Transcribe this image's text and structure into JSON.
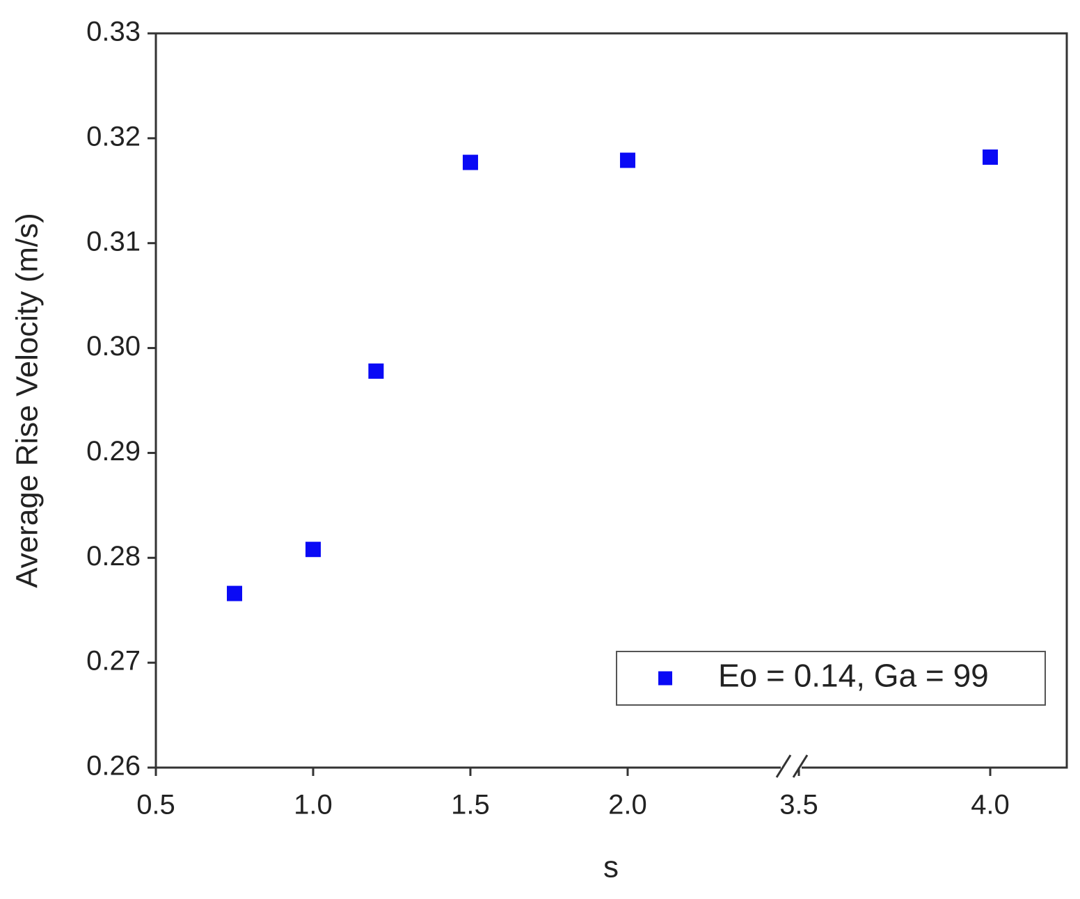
{
  "chart_data": {
    "type": "scatter",
    "x_label": "s",
    "y_label": "Average Rise Velocity (m/s)",
    "x": [
      0.75,
      1.0,
      1.2,
      1.5,
      2.0,
      4.0
    ],
    "series": [
      {
        "name": "Eo = 0.14, Ga = 99",
        "color": "#0a0af5",
        "values": [
          0.2766,
          0.2808,
          0.2978,
          0.3177,
          0.3179,
          0.3182
        ]
      }
    ],
    "xlim": [
      0.5,
      4.2
    ],
    "xbreak": [
      2.52,
      3.48
    ],
    "xticks": [
      0.5,
      {
        "value": 1,
        "label": "1.0"
      },
      1.5,
      {
        "value": 2,
        "label": "2.0"
      },
      3.5,
      {
        "value": 4,
        "label": "4.0"
      }
    ],
    "ylim": [
      0.26,
      0.33
    ],
    "yticks": [
      0.26,
      0.27,
      0.28,
      0.29,
      {
        "value": 0.3,
        "label": "0.30"
      },
      0.31,
      0.32,
      0.33
    ],
    "grid": false,
    "legend": "lower right"
  }
}
